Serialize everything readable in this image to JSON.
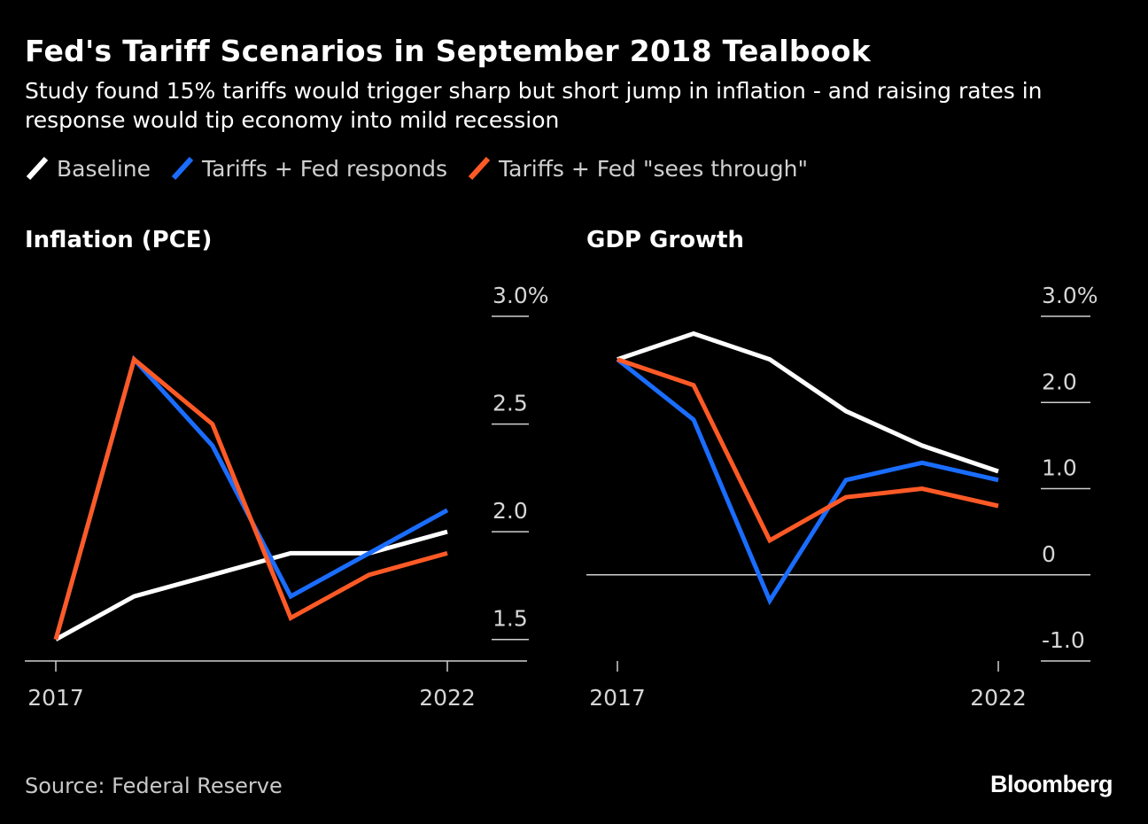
{
  "title": "Fed's Tariff Scenarios in September 2018 Tealbook",
  "subtitle": "Study found 15% tariffs would trigger sharp but short jump in inflation - and raising rates in response would tip economy into mild recession",
  "legend": [
    {
      "label": "Baseline",
      "color": "#ffffff"
    },
    {
      "label": "Tariffs + Fed responds",
      "color": "#1a6dff"
    },
    {
      "label": "Tariffs + Fed \"sees through\"",
      "color": "#ff5a26"
    }
  ],
  "source": "Source: Federal Reserve",
  "logo": "Bloomberg",
  "chart_data": [
    {
      "type": "line",
      "title": "Inflation (PCE)",
      "x": [
        2017,
        2018,
        2019,
        2020,
        2021,
        2022
      ],
      "x_tick_labels": [
        "2017",
        "2022"
      ],
      "y_tick_values": [
        1.5,
        2.0,
        2.5,
        3.0
      ],
      "y_tick_labels": [
        "1.5",
        "2.0",
        "2.5",
        "3.0%"
      ],
      "ylim": [
        1.4,
        3.0
      ],
      "series": [
        {
          "name": "Baseline",
          "color": "#ffffff",
          "values": [
            1.5,
            1.7,
            1.8,
            1.9,
            1.9,
            2.0
          ]
        },
        {
          "name": "Tariffs + Fed responds",
          "color": "#1a6dff",
          "values": [
            1.5,
            2.8,
            2.4,
            1.7,
            1.9,
            2.1
          ]
        },
        {
          "name": "Tariffs + Fed \"sees through\"",
          "color": "#ff5a26",
          "values": [
            1.5,
            2.8,
            2.5,
            1.6,
            1.8,
            1.9
          ]
        }
      ]
    },
    {
      "type": "line",
      "title": "GDP Growth",
      "x": [
        2017,
        2018,
        2019,
        2020,
        2021,
        2022
      ],
      "x_tick_labels": [
        "2017",
        "2022"
      ],
      "y_tick_values": [
        -1.0,
        0,
        1.0,
        2.0,
        3.0
      ],
      "y_tick_labels": [
        "-1.0",
        "0",
        "1.0",
        "2.0",
        "3.0%"
      ],
      "ylim": [
        -1.0,
        3.0
      ],
      "series": [
        {
          "name": "Baseline",
          "color": "#ffffff",
          "values": [
            2.5,
            2.8,
            2.5,
            1.9,
            1.5,
            1.2
          ]
        },
        {
          "name": "Tariffs + Fed responds",
          "color": "#1a6dff",
          "values": [
            2.5,
            1.8,
            -0.3,
            1.1,
            1.3,
            1.1
          ]
        },
        {
          "name": "Tariffs + Fed \"sees through\"",
          "color": "#ff5a26",
          "values": [
            2.5,
            2.2,
            0.4,
            0.9,
            1.0,
            0.8
          ]
        }
      ]
    }
  ]
}
